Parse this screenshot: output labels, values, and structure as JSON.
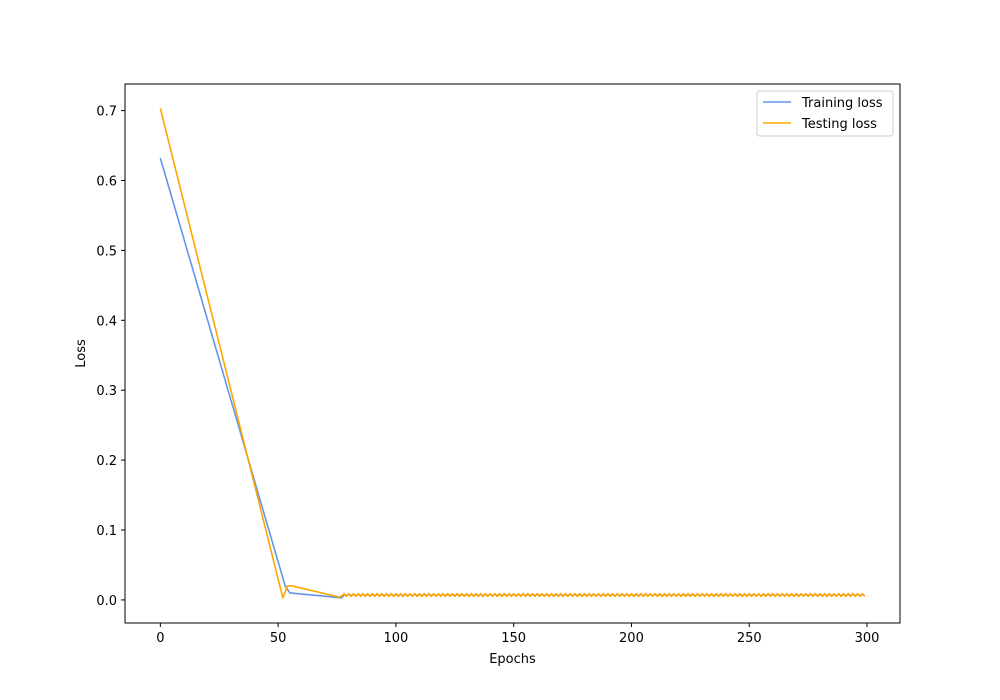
{
  "chart_data": {
    "type": "line",
    "title": "",
    "xlabel": "Epochs",
    "ylabel": "Loss",
    "xlim": [
      -15,
      314
    ],
    "ylim": [
      -0.033,
      0.738
    ],
    "xticks": [
      0,
      50,
      100,
      150,
      200,
      250,
      300
    ],
    "yticks": [
      0.0,
      0.1,
      0.2,
      0.3,
      0.4,
      0.5,
      0.6,
      0.7
    ],
    "grid": false,
    "legend": {
      "position": "top-right"
    },
    "series": [
      {
        "name": "Training loss",
        "color": "#6495ED",
        "points": [
          [
            0,
            0.632
          ],
          [
            53,
            0.02
          ],
          [
            55,
            0.01
          ],
          [
            77,
            0.003
          ],
          [
            78,
            0.007
          ]
        ],
        "plateau": {
          "from": 78,
          "to": 299,
          "low": 0.006,
          "high": 0.008,
          "period": 2
        }
      },
      {
        "name": "Testing loss",
        "color": "#FFA500",
        "points": [
          [
            0,
            0.703
          ],
          [
            52,
            0.003
          ],
          [
            54,
            0.02
          ],
          [
            56,
            0.02
          ],
          [
            76,
            0.004
          ],
          [
            78,
            0.008
          ]
        ],
        "plateau": {
          "from": 78,
          "to": 299,
          "low": 0.005,
          "high": 0.009,
          "period": 2
        }
      }
    ]
  }
}
